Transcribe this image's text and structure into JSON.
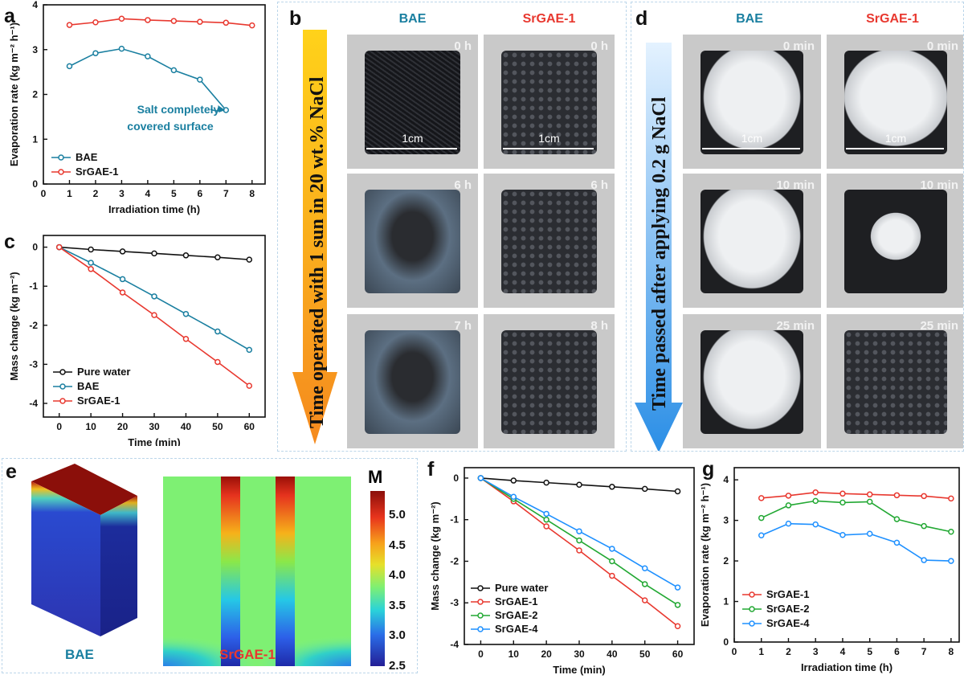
{
  "colors": {
    "bae": "#1a7fa0",
    "srgae1": "#e8382f",
    "srgae2": "#22a833",
    "srgae4": "#1e90ff",
    "water": "#111111",
    "annot": "#1a7fa0"
  },
  "panel_labels": {
    "a": "a",
    "b": "b",
    "c": "c",
    "d": "d",
    "e": "e",
    "f": "f",
    "g": "g"
  },
  "panel_b": {
    "col_labels": [
      "BAE",
      "SrGAE-1"
    ],
    "arrow_text": "Time operated with 1 sun in 20 wt.% NaCl",
    "times": [
      "0 h",
      "0 h",
      "6 h",
      "6 h",
      "7 h",
      "8 h"
    ],
    "scale_bar": "1cm"
  },
  "panel_d": {
    "col_labels": [
      "BAE",
      "SrGAE-1"
    ],
    "arrow_text": "Time passed after applying 0.2 g NaCl",
    "times": [
      "0 min",
      "0 min",
      "10 min",
      "10 min",
      "25 min",
      "25 min"
    ],
    "scale_bar": "1cm"
  },
  "panel_e": {
    "labels": [
      "BAE",
      "SrGAE-1"
    ],
    "colorbar_title": "M",
    "colorbar_ticks": [
      "5.0",
      "4.5",
      "4.0",
      "3.5",
      "3.0",
      "2.5"
    ]
  },
  "chart_data": [
    {
      "id": "a",
      "type": "line",
      "xlabel": "Irradiation time (h)",
      "ylabel": "Evaporation rate (kg m⁻² h⁻¹)",
      "xlim": [
        0,
        8.5
      ],
      "ylim": [
        0,
        4
      ],
      "xticks": [
        0,
        1,
        2,
        3,
        4,
        5,
        6,
        7,
        8
      ],
      "yticks": [
        0,
        1,
        2,
        3,
        4
      ],
      "series": [
        {
          "name": "BAE",
          "x": [
            1,
            2,
            3,
            4,
            5,
            6,
            7
          ],
          "y": [
            2.63,
            2.92,
            3.02,
            2.85,
            2.54,
            2.33,
            1.65
          ]
        },
        {
          "name": "SrGAE-1",
          "x": [
            1,
            2,
            3,
            4,
            5,
            6,
            7,
            8
          ],
          "y": [
            3.55,
            3.61,
            3.69,
            3.66,
            3.64,
            3.62,
            3.6,
            3.54
          ]
        }
      ],
      "annotation": [
        "Salt completely",
        "covered surface"
      ],
      "legend_position": "bottom-left"
    },
    {
      "id": "c",
      "type": "line",
      "xlabel": "Time (min)",
      "ylabel": "Mass change (kg m⁻²)",
      "xlim": [
        -5,
        65
      ],
      "ylim": [
        -4.35,
        0.3
      ],
      "xticks": [
        0,
        10,
        20,
        30,
        40,
        50,
        60
      ],
      "yticks": [
        0,
        -1,
        -2,
        -3,
        -4
      ],
      "series": [
        {
          "name": "Pure water",
          "x": [
            0,
            10,
            20,
            30,
            40,
            50,
            60
          ],
          "y": [
            0,
            -0.06,
            -0.11,
            -0.16,
            -0.21,
            -0.26,
            -0.32
          ]
        },
        {
          "name": "BAE",
          "x": [
            0,
            10,
            20,
            30,
            40,
            50,
            60
          ],
          "y": [
            0,
            -0.4,
            -0.82,
            -1.26,
            -1.71,
            -2.16,
            -2.63
          ]
        },
        {
          "name": "SrGAE-1",
          "x": [
            0,
            10,
            20,
            30,
            40,
            50,
            60
          ],
          "y": [
            0,
            -0.56,
            -1.16,
            -1.74,
            -2.35,
            -2.94,
            -3.55
          ]
        }
      ],
      "legend_position": "bottom-left"
    },
    {
      "id": "f",
      "type": "line",
      "xlabel": "Time (min)",
      "ylabel": "Mass change (kg m⁻²)",
      "xlim": [
        -5,
        65
      ],
      "ylim": [
        -4,
        0.25
      ],
      "xticks": [
        0,
        10,
        20,
        30,
        40,
        50,
        60
      ],
      "yticks": [
        0,
        -1,
        -2,
        -3,
        -4
      ],
      "series": [
        {
          "name": "Pure water",
          "x": [
            0,
            10,
            20,
            30,
            40,
            50,
            60
          ],
          "y": [
            0,
            -0.06,
            -0.11,
            -0.16,
            -0.21,
            -0.26,
            -0.32
          ]
        },
        {
          "name": "SrGAE-1",
          "x": [
            0,
            10,
            20,
            30,
            40,
            50,
            60
          ],
          "y": [
            0,
            -0.56,
            -1.16,
            -1.74,
            -2.35,
            -2.94,
            -3.56
          ]
        },
        {
          "name": "SrGAE-2",
          "x": [
            0,
            10,
            20,
            30,
            40,
            50,
            60
          ],
          "y": [
            0,
            -0.5,
            -1.0,
            -1.5,
            -2.0,
            -2.55,
            -3.05
          ]
        },
        {
          "name": "SrGAE-4",
          "x": [
            0,
            10,
            20,
            30,
            40,
            50,
            60
          ],
          "y": [
            0,
            -0.45,
            -0.86,
            -1.28,
            -1.7,
            -2.17,
            -2.63
          ]
        }
      ],
      "legend_position": "bottom-left"
    },
    {
      "id": "g",
      "type": "line",
      "xlabel": "Irradiation time (h)",
      "ylabel": "Evaporation rate (kg m⁻² h⁻¹)",
      "xlim": [
        0,
        8.3
      ],
      "ylim": [
        0,
        4.3
      ],
      "xticks": [
        0,
        1,
        2,
        3,
        4,
        5,
        6,
        7,
        8
      ],
      "yticks": [
        0,
        1,
        2,
        3,
        4
      ],
      "series": [
        {
          "name": "SrGAE-1",
          "x": [
            1,
            2,
            3,
            4,
            5,
            6,
            7,
            8
          ],
          "y": [
            3.55,
            3.61,
            3.69,
            3.66,
            3.64,
            3.62,
            3.6,
            3.54
          ]
        },
        {
          "name": "SrGAE-2",
          "x": [
            1,
            2,
            3,
            4,
            5,
            6,
            7,
            8
          ],
          "y": [
            3.06,
            3.37,
            3.48,
            3.44,
            3.46,
            3.03,
            2.86,
            2.72
          ]
        },
        {
          "name": "SrGAE-4",
          "x": [
            1,
            2,
            3,
            4,
            5,
            6,
            7,
            8
          ],
          "y": [
            2.63,
            2.92,
            2.9,
            2.64,
            2.67,
            2.45,
            2.02,
            2.0
          ]
        }
      ],
      "legend_position": "bottom-left"
    }
  ]
}
